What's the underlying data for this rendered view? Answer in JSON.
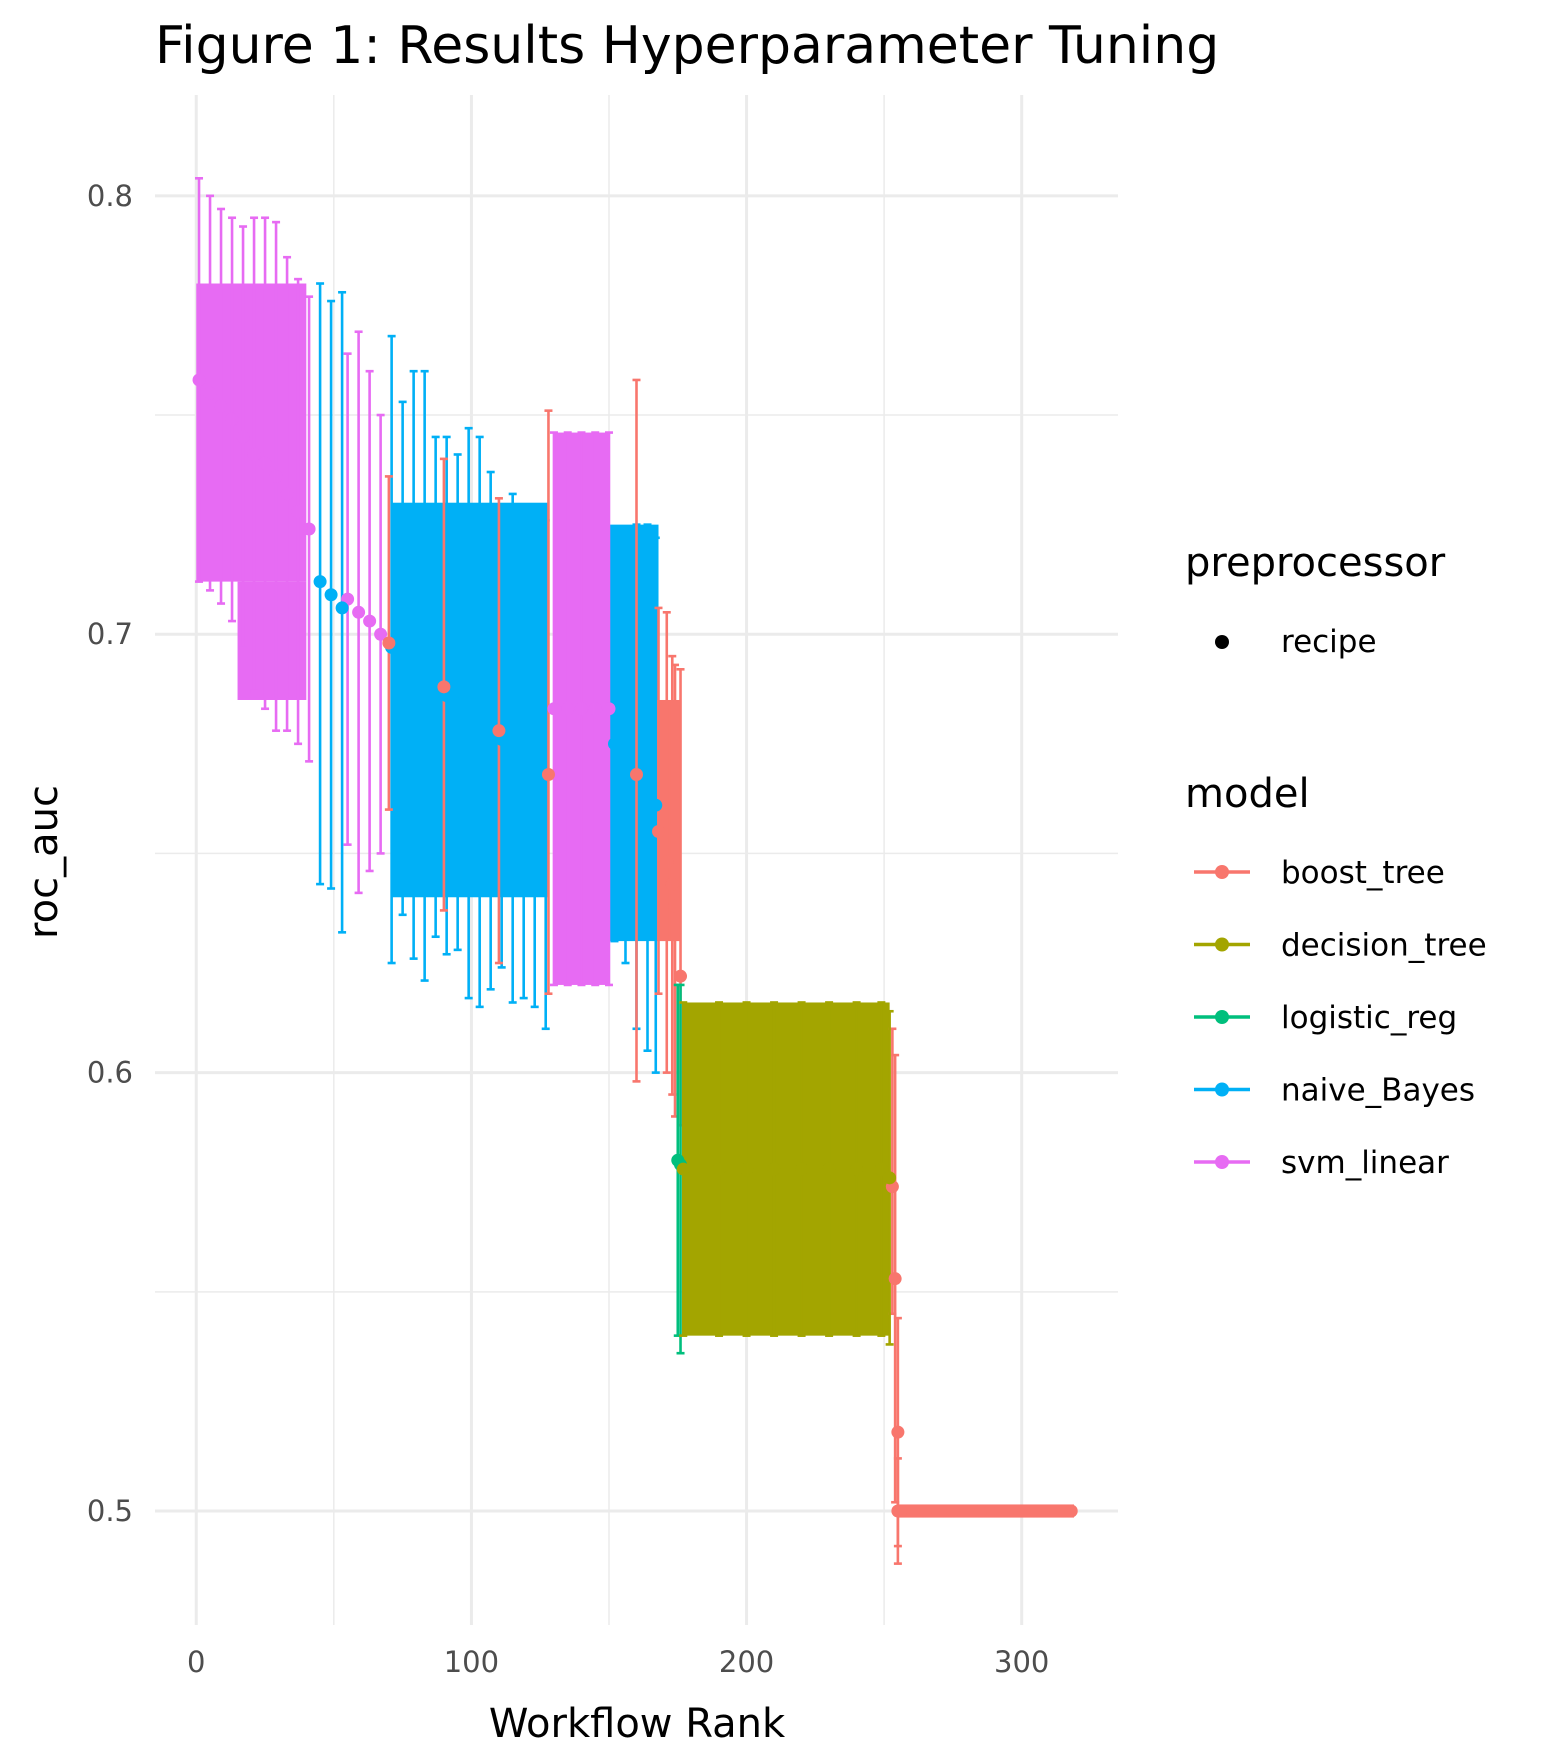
{
  "chart_data": {
    "type": "scatter",
    "title": "Figure 1: Results Hyperparameter Tuning",
    "xlabel": "Workflow Rank",
    "ylabel": "roc_auc",
    "xlim": [
      -15,
      335
    ],
    "ylim": [
      0.474,
      0.823
    ],
    "x_ticks": [
      {
        "value": 0,
        "label": "0"
      },
      {
        "value": 100,
        "label": "100"
      },
      {
        "value": 200,
        "label": "200"
      },
      {
        "value": 300,
        "label": "300"
      }
    ],
    "y_ticks": [
      {
        "value": 0.5,
        "label": "0.5"
      },
      {
        "value": 0.6,
        "label": "0.6"
      },
      {
        "value": 0.7,
        "label": "0.7"
      },
      {
        "value": 0.8,
        "label": "0.8"
      }
    ],
    "grid": true,
    "legend": {
      "placement": "right",
      "shape_title": "preprocessor",
      "shape_entries": [
        {
          "label": "recipe"
        }
      ],
      "color_title": "model",
      "color_entries": [
        {
          "label": "boost_tree",
          "color": "#F8766D"
        },
        {
          "label": "decision_tree",
          "color": "#A3A500"
        },
        {
          "label": "logistic_reg",
          "color": "#00BF7D"
        },
        {
          "label": "naive_Bayes",
          "color": "#00B0F6"
        },
        {
          "label": "svm_linear",
          "color": "#E76BF3"
        }
      ]
    },
    "series": [
      {
        "name": "svm_linear",
        "color": "#E76BF3",
        "points": [
          [
            1,
            0.758,
            0.712,
            0.804
          ],
          [
            5,
            0.755,
            0.71,
            0.8
          ],
          [
            9,
            0.752,
            0.707,
            0.797
          ],
          [
            13,
            0.749,
            0.703,
            0.795
          ],
          [
            17,
            0.745,
            0.697,
            0.793
          ],
          [
            21,
            0.741,
            0.687,
            0.795
          ],
          [
            25,
            0.739,
            0.683,
            0.795
          ],
          [
            29,
            0.736,
            0.678,
            0.794
          ],
          [
            33,
            0.732,
            0.678,
            0.786
          ],
          [
            37,
            0.728,
            0.675,
            0.781
          ],
          [
            41,
            0.724,
            0.671,
            0.777
          ],
          [
            55,
            0.708,
            0.652,
            0.764
          ],
          [
            59,
            0.705,
            0.641,
            0.769
          ],
          [
            63,
            0.703,
            0.646,
            0.76
          ],
          [
            67,
            0.7,
            0.65,
            0.75
          ],
          [
            130,
            0.683,
            0.62,
            0.746
          ],
          [
            135,
            0.683,
            0.62,
            0.746
          ],
          [
            140,
            0.683,
            0.62,
            0.746
          ],
          [
            145,
            0.683,
            0.62,
            0.746
          ],
          [
            150,
            0.683,
            0.62,
            0.746
          ]
        ]
      },
      {
        "name": "naive_Bayes",
        "color": "#00B0F6",
        "points": [
          [
            45,
            0.712,
            0.643,
            0.78
          ],
          [
            49,
            0.709,
            0.642,
            0.776
          ],
          [
            53,
            0.706,
            0.632,
            0.778
          ],
          [
            71,
            0.697,
            0.625,
            0.768
          ],
          [
            75,
            0.694,
            0.636,
            0.753
          ],
          [
            79,
            0.692,
            0.626,
            0.76
          ],
          [
            83,
            0.69,
            0.621,
            0.76
          ],
          [
            87,
            0.688,
            0.631,
            0.745
          ],
          [
            91,
            0.686,
            0.627,
            0.745
          ],
          [
            95,
            0.684,
            0.628,
            0.741
          ],
          [
            99,
            0.682,
            0.617,
            0.747
          ],
          [
            103,
            0.68,
            0.615,
            0.745
          ],
          [
            107,
            0.678,
            0.619,
            0.737
          ],
          [
            111,
            0.676,
            0.624,
            0.728
          ],
          [
            115,
            0.674,
            0.616,
            0.732
          ],
          [
            119,
            0.672,
            0.617,
            0.727
          ],
          [
            123,
            0.67,
            0.615,
            0.725
          ],
          [
            127,
            0.668,
            0.61,
            0.726
          ],
          [
            152,
            0.675,
            0.63,
            0.72
          ],
          [
            156,
            0.672,
            0.625,
            0.72
          ],
          [
            160,
            0.668,
            0.61,
            0.725
          ],
          [
            164,
            0.665,
            0.605,
            0.725
          ],
          [
            167,
            0.661,
            0.6,
            0.722
          ]
        ]
      },
      {
        "name": "boost_tree",
        "color": "#F8766D",
        "points": [
          [
            70,
            0.698,
            0.66,
            0.736
          ],
          [
            90,
            0.688,
            0.637,
            0.74
          ],
          [
            110,
            0.678,
            0.625,
            0.731
          ],
          [
            128,
            0.668,
            0.618,
            0.751
          ],
          [
            160,
            0.668,
            0.598,
            0.758
          ],
          [
            168,
            0.655,
            0.618,
            0.706
          ],
          [
            171,
            0.648,
            0.6,
            0.705
          ],
          [
            173,
            0.643,
            0.595,
            0.695
          ],
          [
            174,
            0.638,
            0.59,
            0.693
          ],
          [
            176,
            0.622,
            0.588,
            0.692
          ],
          [
            253,
            0.574,
            0.545,
            0.61
          ],
          [
            254,
            0.553,
            0.502,
            0.604
          ],
          [
            255,
            0.518,
            0.492,
            0.544
          ],
          [
            255,
            0.5,
            0.488,
            0.512
          ],
          [
            256,
            0.5,
            0.5,
            0.5
          ],
          [
            265,
            0.5,
            0.5,
            0.5
          ],
          [
            275,
            0.5,
            0.5,
            0.5
          ],
          [
            285,
            0.5,
            0.5,
            0.5
          ],
          [
            295,
            0.5,
            0.5,
            0.5
          ],
          [
            305,
            0.5,
            0.5,
            0.5
          ],
          [
            315,
            0.5,
            0.5,
            0.5
          ],
          [
            318,
            0.5,
            0.5,
            0.5
          ]
        ]
      },
      {
        "name": "logistic_reg",
        "color": "#00BF7D",
        "points": [
          [
            175,
            0.58,
            0.54,
            0.62
          ],
          [
            176,
            0.579,
            0.536,
            0.62
          ]
        ]
      },
      {
        "name": "decision_tree",
        "color": "#A3A500",
        "points": [
          [
            177,
            0.578,
            0.54,
            0.616
          ],
          [
            190,
            0.578,
            0.54,
            0.616
          ],
          [
            200,
            0.578,
            0.54,
            0.616
          ],
          [
            210,
            0.578,
            0.54,
            0.616
          ],
          [
            220,
            0.578,
            0.54,
            0.616
          ],
          [
            230,
            0.578,
            0.54,
            0.616
          ],
          [
            240,
            0.578,
            0.54,
            0.616
          ],
          [
            249,
            0.578,
            0.54,
            0.616
          ],
          [
            252,
            0.576,
            0.538,
            0.614
          ]
        ]
      }
    ],
    "bands": [
      {
        "model": "svm_linear",
        "color": "#E76BF3",
        "x0": 0,
        "x1": 40,
        "y0": 0.712,
        "y1": 0.78
      },
      {
        "model": "svm_linear",
        "color": "#E76BF3",
        "x0": 15,
        "x1": 40,
        "y0": 0.685,
        "y1": 0.712
      },
      {
        "model": "svm_linear",
        "color": "#E76BF3",
        "x0": 130,
        "x1": 150,
        "y0": 0.62,
        "y1": 0.746
      },
      {
        "model": "naive_Bayes",
        "color": "#00B0F6",
        "x0": 71,
        "x1": 128,
        "y0": 0.64,
        "y1": 0.73
      },
      {
        "model": "naive_Bayes",
        "color": "#00B0F6",
        "x0": 150,
        "x1": 168,
        "y0": 0.63,
        "y1": 0.725
      },
      {
        "model": "boost_tree",
        "color": "#F8766D",
        "x0": 167,
        "x1": 176,
        "y0": 0.63,
        "y1": 0.685
      },
      {
        "model": "decision_tree",
        "color": "#A3A500",
        "x0": 177,
        "x1": 252,
        "y0": 0.54,
        "y1": 0.616
      },
      {
        "model": "boost_tree",
        "color": "#F8766D",
        "x0": 255,
        "x1": 319,
        "y0": 0.4985,
        "y1": 0.5015
      }
    ]
  }
}
